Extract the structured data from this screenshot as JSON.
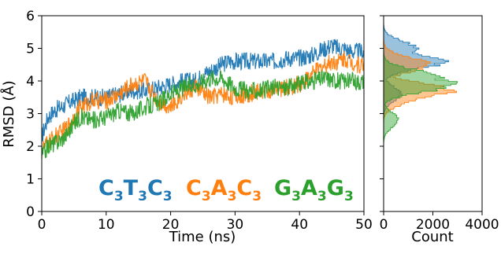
{
  "chart_data": [
    {
      "type": "line",
      "xlabel": "Time (ns)",
      "ylabel": "RMSD (Å)",
      "xlim": [
        0,
        50
      ],
      "ylim": [
        0,
        6
      ],
      "xticks": [
        "0",
        "10",
        "20",
        "30",
        "40",
        "50"
      ],
      "yticks": [
        "0",
        "1",
        "2",
        "3",
        "4",
        "5",
        "6"
      ],
      "grid": false,
      "series": [
        {
          "name": "C3T3C3",
          "color": "#1f77b4",
          "x": [
            0,
            1,
            2,
            3,
            4,
            5,
            6,
            8,
            10,
            12,
            14,
            16,
            18,
            20,
            22,
            24,
            25,
            26,
            27,
            28,
            29,
            30,
            32,
            34,
            36,
            38,
            40,
            42,
            43,
            44,
            45,
            46,
            47,
            48,
            49,
            50
          ],
          "y": [
            2.3,
            2.9,
            3.1,
            3.2,
            3.3,
            3.4,
            3.5,
            3.5,
            3.5,
            3.6,
            3.7,
            3.7,
            3.8,
            3.9,
            4.0,
            4.0,
            4.2,
            4.3,
            4.4,
            4.5,
            4.6,
            4.6,
            4.6,
            4.6,
            4.6,
            4.7,
            4.7,
            4.8,
            4.9,
            5.0,
            5.1,
            5.0,
            5.0,
            4.9,
            4.9,
            4.9
          ]
        },
        {
          "name": "C3A3C3",
          "color": "#ff7f0e",
          "x": [
            0,
            1,
            2,
            3,
            4,
            5,
            6,
            8,
            10,
            12,
            14,
            16,
            18,
            20,
            22,
            24,
            26,
            28,
            30,
            32,
            34,
            36,
            38,
            40,
            42,
            44,
            45,
            46,
            47,
            48,
            49,
            50
          ],
          "y": [
            1.9,
            2.1,
            2.3,
            2.4,
            2.6,
            2.9,
            3.2,
            3.4,
            3.4,
            3.6,
            3.9,
            4.0,
            3.4,
            3.2,
            3.6,
            3.8,
            3.5,
            3.6,
            3.5,
            3.6,
            3.7,
            3.7,
            3.8,
            3.9,
            4.2,
            4.5,
            4.6,
            4.6,
            4.7,
            4.6,
            4.5,
            4.5
          ]
        },
        {
          "name": "G3A3G3",
          "color": "#2ca02c",
          "x": [
            0,
            1,
            2,
            3,
            4,
            5,
            6,
            8,
            10,
            12,
            14,
            16,
            18,
            20,
            22,
            24,
            26,
            28,
            30,
            32,
            34,
            36,
            38,
            40,
            42,
            44,
            46,
            48,
            50
          ],
          "y": [
            1.7,
            2.0,
            2.1,
            2.2,
            2.4,
            2.7,
            2.9,
            2.8,
            2.9,
            3.1,
            3.0,
            3.2,
            3.3,
            3.6,
            3.8,
            3.9,
            4.1,
            4.1,
            3.8,
            3.7,
            3.7,
            3.8,
            3.8,
            3.9,
            4.0,
            4.1,
            4.0,
            4.0,
            4.0
          ]
        }
      ]
    },
    {
      "type": "histogram",
      "orientation": "horizontal",
      "xlabel": "Count",
      "xlim": [
        0,
        4000
      ],
      "xticks": [
        "0",
        "2000",
        "4000"
      ],
      "ylim": [
        0,
        6
      ],
      "grid": false,
      "series": [
        {
          "name": "C3T3C3",
          "color": "#1f77b4",
          "peaks": [
            {
              "rmsd": 3.6,
              "count": 700
            },
            {
              "rmsd": 4.6,
              "count": 2400
            },
            {
              "rmsd": 5.0,
              "count": 1300
            }
          ]
        },
        {
          "name": "C3A3C3",
          "color": "#ff7f0e",
          "peaks": [
            {
              "rmsd": 3.5,
              "count": 1300
            },
            {
              "rmsd": 3.7,
              "count": 2700
            },
            {
              "rmsd": 4.5,
              "count": 1800
            }
          ]
        },
        {
          "name": "G3A3G3",
          "color": "#2ca02c",
          "peaks": [
            {
              "rmsd": 2.8,
              "count": 600
            },
            {
              "rmsd": 3.9,
              "count": 2900
            },
            {
              "rmsd": 4.1,
              "count": 2300
            }
          ]
        }
      ]
    }
  ],
  "labels": {
    "series1": {
      "base": [
        "C",
        "T",
        "C"
      ],
      "sub": [
        "3",
        "3",
        "3"
      ],
      "color": "#1f77b4"
    },
    "series2": {
      "base": [
        "C",
        "A",
        "C"
      ],
      "sub": [
        "3",
        "3",
        "3"
      ],
      "color": "#ff7f0e"
    },
    "series3": {
      "base": [
        "G",
        "A",
        "G"
      ],
      "sub": [
        "3",
        "3",
        "3"
      ],
      "color": "#2ca02c"
    }
  }
}
